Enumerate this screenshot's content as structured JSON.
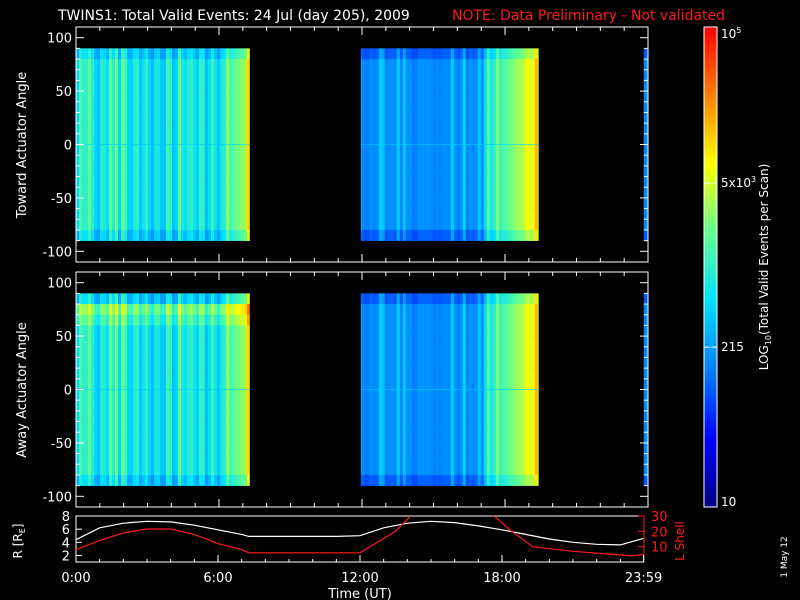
{
  "header": {
    "title": "TWINS1: Total Valid Events: 24 Jul (day 205), 2009",
    "note": "NOTE: Data Preliminary - Not validated"
  },
  "colors": {
    "background": "#000000",
    "text": "#ffffff",
    "note": "#ff1a1a",
    "r_line": "#ffffff",
    "l_shell_line": "#ff1a1a",
    "colormap": [
      "#000080",
      "#0000ff",
      "#0080ff",
      "#00e0ff",
      "#60ff90",
      "#ffff00",
      "#ff8000",
      "#ff0000"
    ]
  },
  "colorbar": {
    "label": "LOG10(Total Valid Events per Scan)",
    "label_main": "LOG",
    "label_sub": "10",
    "label_rest": "(Total Valid Events per Scan)",
    "ticks": [
      {
        "value": 10,
        "text": "10"
      },
      {
        "value": 215,
        "text": "215"
      },
      {
        "value": 5000,
        "text": "5x10",
        "sup": "3"
      },
      {
        "value": 100000,
        "text": "10",
        "sup": "5"
      }
    ],
    "range": [
      10,
      100000
    ],
    "scale": "log"
  },
  "side_label": "1 May 12",
  "chart_data": [
    {
      "type": "heatmap",
      "panel": "top",
      "ylabel": "Toward Actuator Angle",
      "ylim": [
        -110,
        110
      ],
      "yticks": [
        100,
        50,
        0,
        -50,
        -100
      ],
      "ytick_labels": [
        "100",
        "50",
        "0",
        "-50",
        "-100"
      ],
      "data_yrange": [
        -90,
        90
      ],
      "xlim": [
        0,
        24
      ],
      "x_unit": "hours UT",
      "segments": [
        {
          "start": 0.0,
          "end": 7.28,
          "profile": "morning"
        },
        {
          "start": 11.95,
          "end": 19.4,
          "profile": "afternoon"
        },
        {
          "start": 23.82,
          "end": 23.98,
          "profile": "late"
        }
      ]
    },
    {
      "type": "heatmap",
      "panel": "middle",
      "ylabel": "Away Actuator Angle",
      "ylim": [
        -110,
        110
      ],
      "yticks": [
        100,
        50,
        0,
        -50,
        -100
      ],
      "ytick_labels": [
        "100",
        "50",
        "0",
        "-50",
        "-100"
      ],
      "data_yrange": [
        -90,
        90
      ],
      "xlim": [
        0,
        24
      ],
      "x_unit": "hours UT",
      "segments": [
        {
          "start": 0.0,
          "end": 7.28,
          "profile": "morning"
        },
        {
          "start": 11.95,
          "end": 19.4,
          "profile": "afternoon"
        },
        {
          "start": 23.82,
          "end": 23.98,
          "profile": "late"
        }
      ]
    },
    {
      "type": "line",
      "panel": "bottom",
      "ylabel_left": "R [R",
      "ylabel_left_sub": "E",
      "ylabel_left_end": "]",
      "ylabel_right": "L Shell",
      "xlabel": "Time (UT)",
      "xlim": [
        0,
        24
      ],
      "xticks": [
        0,
        6,
        12,
        18,
        23.983
      ],
      "xtick_labels": [
        "0:00",
        "6:00",
        "12:00",
        "18:00",
        "23:59"
      ],
      "ylim_left": [
        1,
        8
      ],
      "yticks_left": [
        2,
        4,
        6,
        8
      ],
      "ytick_labels_left": [
        "2",
        "4",
        "6",
        "8"
      ],
      "ylim_right": [
        0,
        30
      ],
      "yticks_right": [
        10,
        20,
        30
      ],
      "ytick_labels_right": [
        "10",
        "20",
        "30"
      ],
      "series": [
        {
          "axis": "left",
          "x": [
            0,
            1,
            2,
            3,
            4,
            5,
            6,
            7,
            7.3,
            8,
            9,
            10,
            11,
            12,
            13,
            14,
            15,
            16,
            17,
            18,
            19,
            20,
            21,
            22,
            23,
            24
          ],
          "y": [
            4.4,
            6.2,
            6.9,
            7.2,
            7.1,
            6.6,
            5.9,
            5.2,
            4.9,
            4.9,
            4.9,
            4.9,
            4.9,
            5.0,
            6.2,
            6.9,
            7.2,
            7.0,
            6.5,
            5.9,
            5.2,
            4.5,
            4.0,
            3.7,
            3.6,
            4.6
          ]
        },
        {
          "axis": "right",
          "x": [
            0,
            1,
            2,
            3,
            4,
            5,
            6,
            7,
            7.3,
            12,
            13.5,
            14.2,
            17.6,
            18.4,
            19.3,
            21,
            23.5,
            24
          ],
          "y": [
            8,
            14,
            19,
            21.5,
            21.5,
            18,
            12,
            8,
            6,
            6,
            20,
            31,
            31,
            20,
            10,
            7,
            4,
            5
          ]
        }
      ]
    }
  ]
}
